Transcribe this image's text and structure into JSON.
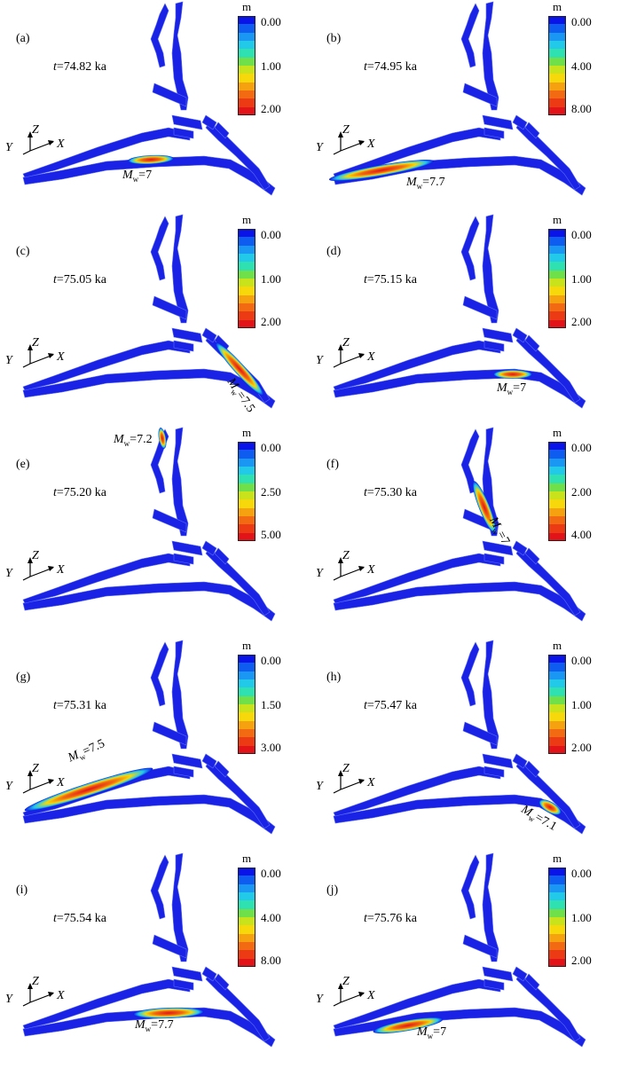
{
  "colorbar": {
    "unit": "m",
    "colors": [
      "#0a14e8",
      "#0f5cf0",
      "#1a97f2",
      "#22c9e8",
      "#2fe0b0",
      "#6fe04a",
      "#c8e21c",
      "#f7d80a",
      "#f6a110",
      "#f26a12",
      "#ec3a14",
      "#e2141a"
    ]
  },
  "panels": [
    {
      "label": "(a)",
      "time": "74.82 ka",
      "ticks": [
        "0.00",
        "1.00",
        "2.00"
      ],
      "mw": "7",
      "rupture": "r1",
      "label_pos": [
        138,
        190
      ],
      "label_rot": 0
    },
    {
      "label": "(b)",
      "time": "74.95 ka",
      "ticks": [
        "0.00",
        "4.00",
        "8.00"
      ],
      "mw": "7.7",
      "rupture": "r2",
      "label_pos": [
        108,
        198
      ],
      "label_rot": 0
    },
    {
      "label": "(c)",
      "time": "75.05 ka",
      "ticks": [
        "0.00",
        "1.00",
        "2.00"
      ],
      "mw": "7.5",
      "rupture": "r3",
      "label_pos": [
        258,
        180
      ],
      "label_rot": 55
    },
    {
      "label": "(d)",
      "time": "75.15 ka",
      "ticks": [
        "0.00",
        "1.00",
        "2.00"
      ],
      "mw": "7",
      "rupture": "r4",
      "label_pos": [
        210,
        190
      ],
      "label_rot": 0
    },
    {
      "label": "(e)",
      "time": "75.20 ka",
      "ticks": [
        "0.00",
        "2.50",
        "5.00"
      ],
      "mw": "7.2",
      "rupture": "r5",
      "label_pos": [
        128,
        8
      ],
      "label_rot": 0
    },
    {
      "label": "(f)",
      "time": "75.30 ka",
      "ticks": [
        "0.00",
        "2.00",
        "4.00"
      ],
      "mw": "7",
      "rupture": "r6",
      "label_pos": [
        204,
        96
      ],
      "label_rot": 62
    },
    {
      "label": "(g)",
      "time": "75.31 ka",
      "ticks": [
        "0.00",
        "1.50",
        "3.00"
      ],
      "mw": "7.5",
      "rupture": "r7",
      "label_pos": [
        78,
        128
      ],
      "label_rot": -24
    },
    {
      "label": "(h)",
      "time": "75.47 ka",
      "ticks": [
        "0.00",
        "1.00",
        "2.00"
      ],
      "mw": "7.1",
      "rupture": "r8",
      "label_pos": [
        238,
        184
      ],
      "label_rot": 30
    },
    {
      "label": "(i)",
      "time": "75.54 ka",
      "ticks": [
        "0.00",
        "4.00",
        "8.00"
      ],
      "mw": "7.7",
      "rupture": "r9",
      "label_pos": [
        152,
        188
      ],
      "label_rot": 0
    },
    {
      "label": "(j)",
      "time": "75.76 ka",
      "ticks": [
        "0.00",
        "1.00",
        "2.00"
      ],
      "mw": "7",
      "rupture": "r10",
      "label_pos": [
        120,
        196
      ],
      "label_rot": 0
    }
  ],
  "axes_labels": {
    "x": "X",
    "y": "Y",
    "z": "Z"
  },
  "mw_symbol": "M",
  "mw_sub": "w",
  "time_symbol": "t"
}
